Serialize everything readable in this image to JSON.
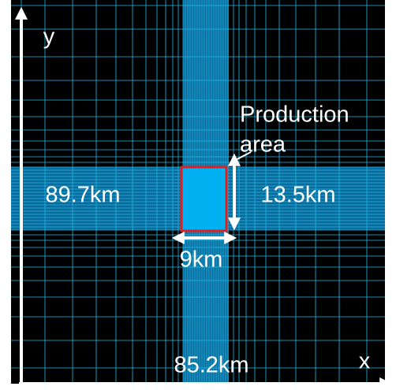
{
  "axes": {
    "y": "y",
    "x": "x"
  },
  "production_area": {
    "label_lines": [
      "Production",
      "area"
    ],
    "width": "9km",
    "length": "13.5km"
  },
  "domain": {
    "length": "89.7km",
    "width": "85.2km"
  }
}
